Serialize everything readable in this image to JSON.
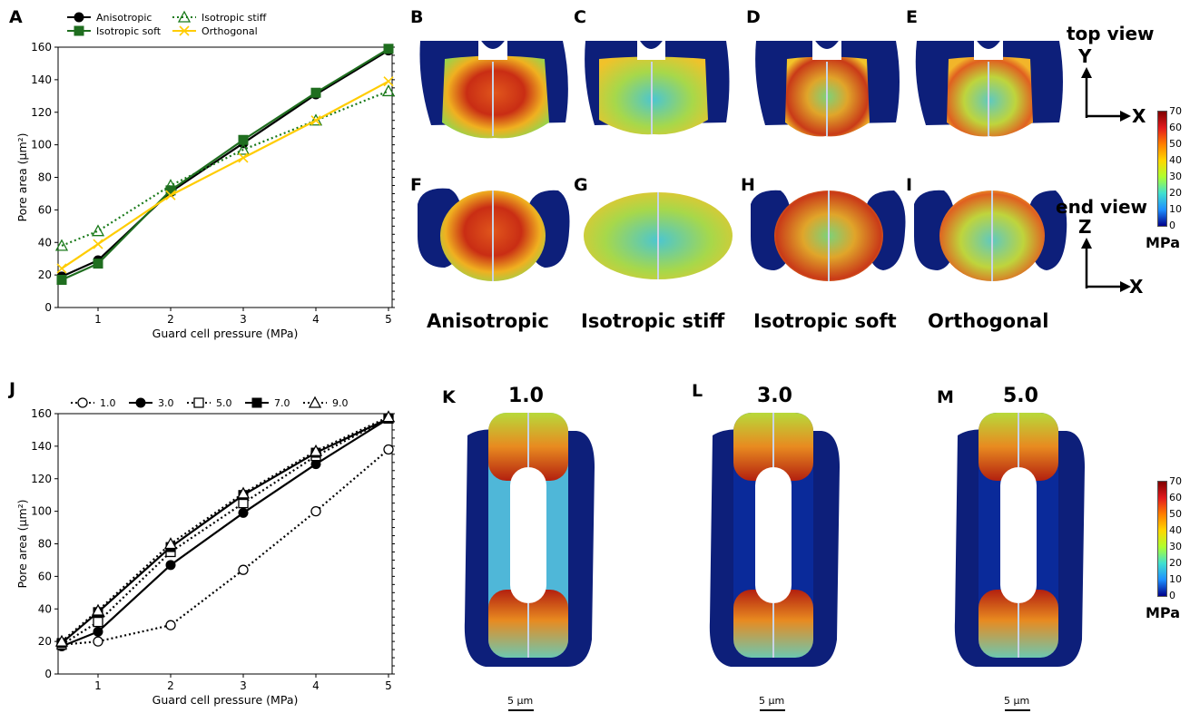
{
  "panel_letters": {
    "A": "A",
    "B": "B",
    "C": "C",
    "D": "D",
    "E": "E",
    "F": "F",
    "G": "G",
    "H": "H",
    "I": "I",
    "J": "J",
    "K": "K",
    "L": "L",
    "M": "M"
  },
  "top_labels": [
    "Anisotropic",
    "Isotropic stiff",
    "Isotropic soft",
    "Orthogonal"
  ],
  "views": {
    "top_view": "top view",
    "end_view": "end view",
    "top_axis_vertical": "Y",
    "top_axis_horizontal": "X",
    "end_axis_vertical": "Z",
    "end_axis_horizontal": "X"
  },
  "pressure_labels": [
    "1.0",
    "3.0",
    "5.0"
  ],
  "colorbar": {
    "ticks": [
      "70",
      "60",
      "50",
      "40",
      "30",
      "20",
      "10",
      "0"
    ],
    "unit": "MPa",
    "colors": [
      "#7f0000",
      "#e31a1c",
      "#ff7f00",
      "#ffd700",
      "#adff2f",
      "#40e0d0",
      "#1e90ff",
      "#00008b"
    ]
  },
  "scale_bar": "5 μm",
  "chart_data": [
    {
      "type": "line",
      "panel": "A",
      "xlabel": "Guard cell pressure (MPa)",
      "ylabel": "Pore area (μm²)",
      "xticks": [
        "1",
        "2",
        "3",
        "4",
        "5"
      ],
      "yticks": [
        "0",
        "20",
        "40",
        "60",
        "80",
        "100",
        "120",
        "140",
        "160"
      ],
      "xlim": [
        0.45,
        5.05
      ],
      "ylim": [
        0,
        160
      ],
      "legend_position": "top",
      "series": [
        {
          "name": "Anisotropic",
          "x": [
            0.5,
            1,
            2,
            3,
            4,
            5
          ],
          "y": [
            19,
            29,
            71,
            101,
            131,
            158
          ],
          "color": "#000000",
          "marker": "circle",
          "dash": "solid"
        },
        {
          "name": "Isotropic stiff",
          "x": [
            0.5,
            1,
            2,
            3,
            4,
            5
          ],
          "y": [
            38,
            47,
            75,
            97,
            115,
            133
          ],
          "color": "#1a7a1a",
          "marker": "triangle",
          "dash": "dotted"
        },
        {
          "name": "Isotropic soft",
          "x": [
            0.5,
            1,
            2,
            3,
            4,
            5
          ],
          "y": [
            17,
            27,
            72,
            103,
            132,
            159
          ],
          "color": "#1f6e1f",
          "marker": "square",
          "dash": "solid"
        },
        {
          "name": "Orthogonal",
          "x": [
            0.5,
            1,
            2,
            3,
            4,
            5
          ],
          "y": [
            24,
            39,
            69,
            92,
            115,
            139
          ],
          "color": "#ffcc00",
          "marker": "x",
          "dash": "solid"
        }
      ]
    },
    {
      "type": "line",
      "panel": "J",
      "xlabel": "Guard cell pressure (MPa)",
      "ylabel": "Pore area (μm²)",
      "xticks": [
        "1",
        "2",
        "3",
        "4",
        "5"
      ],
      "yticks": [
        "0",
        "20",
        "40",
        "60",
        "80",
        "100",
        "120",
        "140",
        "160"
      ],
      "xlim": [
        0.45,
        5.05
      ],
      "ylim": [
        0,
        160
      ],
      "legend_position": "top",
      "series": [
        {
          "name": "1.0",
          "x": [
            0.5,
            1,
            2,
            3,
            4,
            5
          ],
          "y": [
            18,
            20,
            30,
            64,
            100,
            138
          ],
          "color": "#000000",
          "marker": "circle-open",
          "dash": "dotted"
        },
        {
          "name": "3.0",
          "x": [
            0.5,
            1,
            2,
            3,
            4,
            5
          ],
          "y": [
            17,
            26,
            67,
            99,
            129,
            157
          ],
          "color": "#000000",
          "marker": "circle",
          "dash": "solid"
        },
        {
          "name": "5.0",
          "x": [
            0.5,
            1,
            2,
            3,
            4,
            5
          ],
          "y": [
            18,
            32,
            75,
            105,
            134,
            157
          ],
          "color": "#000000",
          "marker": "square-open",
          "dash": "dotted"
        },
        {
          "name": "7.0",
          "x": [
            0.5,
            1,
            2,
            3,
            4,
            5
          ],
          "y": [
            19,
            38,
            78,
            110,
            136,
            157
          ],
          "color": "#000000",
          "marker": "square",
          "dash": "solid"
        },
        {
          "name": "9.0",
          "x": [
            0.5,
            1,
            2,
            3,
            4,
            5
          ],
          "y": [
            20,
            39,
            80,
            111,
            137,
            158
          ],
          "color": "#000000",
          "marker": "triangle-open",
          "dash": "dotted"
        }
      ]
    }
  ]
}
